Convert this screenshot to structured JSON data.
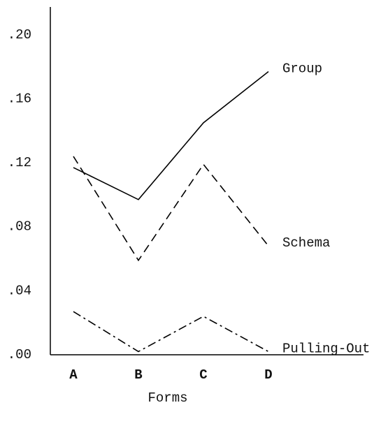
{
  "chart_data": {
    "type": "line",
    "xlabel": "Forms",
    "categories": [
      "A",
      "B",
      "C",
      "D"
    ],
    "series": [
      {
        "name": "Group",
        "color": "#000000",
        "dash": "solid",
        "values": [
          0.117,
          0.097,
          0.145,
          0.177
        ]
      },
      {
        "name": "Schema",
        "color": "#000000",
        "dash": "dashed",
        "values": [
          0.124,
          0.059,
          0.119,
          0.068
        ]
      },
      {
        "name": "Pulling-Out",
        "color": "#000000",
        "dash": "dashdot",
        "values": [
          0.027,
          0.002,
          0.024,
          0.002
        ]
      }
    ],
    "ylim": [
      0,
      0.22
    ],
    "yticks": [
      {
        "value": 0,
        "label": ".00"
      },
      {
        "value": 0.04,
        "label": ".04"
      },
      {
        "value": 0.08,
        "label": ".08"
      },
      {
        "value": 0.12,
        "label": ".12"
      },
      {
        "value": 0.16,
        "label": ".16"
      },
      {
        "value": 0.2,
        "label": ".20"
      }
    ],
    "grid": false
  }
}
